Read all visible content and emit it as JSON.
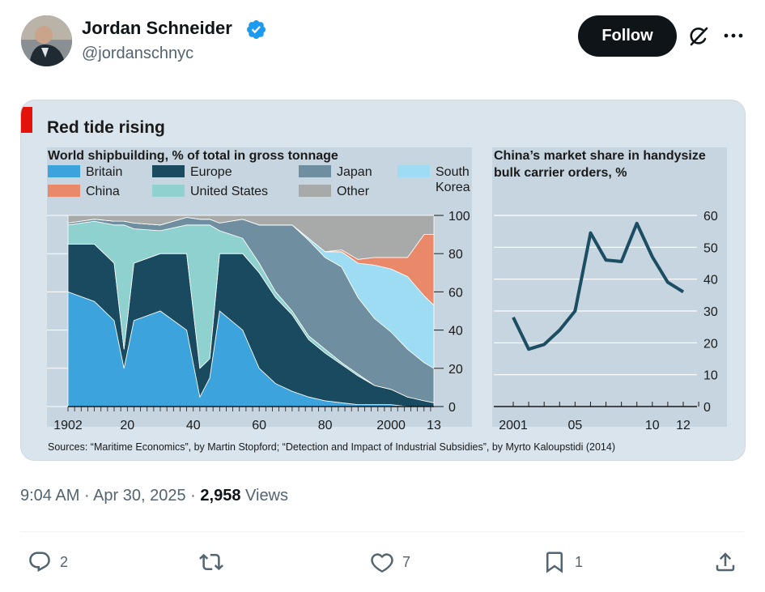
{
  "author": {
    "name": "Jordan Schneider",
    "handle": "@jordanschnyc",
    "verified": true,
    "avatar_icon": "avatar"
  },
  "header": {
    "follow_label": "Follow",
    "grok_icon": "grok-icon",
    "more_icon": "more-icon"
  },
  "image": {
    "title": "Red tide rising",
    "left_chart": {
      "subtitle": "World shipbuilding, % of total in gross tonnage",
      "legend": [
        {
          "label": "Britain",
          "color": "#3ca3dc"
        },
        {
          "label": "China",
          "color": "#e9896a"
        },
        {
          "label": "Europe",
          "color": "#1a4a60"
        },
        {
          "label": "United States",
          "color": "#8fd1cf"
        },
        {
          "label": "Japan",
          "color": "#6f8fa0"
        },
        {
          "label": "Other",
          "color": "#a8a9a9"
        },
        {
          "label": "South Korea",
          "color": "#9edcf3"
        }
      ],
      "x_ticks": [
        "1902",
        "20",
        "40",
        "60",
        "80",
        "2000",
        "13"
      ],
      "y_ticks": [
        "0",
        "20",
        "40",
        "60",
        "80",
        "100"
      ]
    },
    "right_chart": {
      "subtitle_line1": "China’s market share in handysize",
      "subtitle_line2": "bulk carrier orders, %",
      "x_ticks": [
        "2001",
        "05",
        "10",
        "12"
      ],
      "y_ticks": [
        "0",
        "10",
        "20",
        "30",
        "40",
        "50",
        "60"
      ]
    },
    "source": "Sources: “Maritime Economics”, by Martin Stopford; “Detection and Impact of Industrial Subsidies”, by Myrto Kaloupstidi (2014)"
  },
  "chart_data": [
    {
      "type": "area",
      "title": "World shipbuilding, % of total in gross tonnage",
      "x": [
        1902,
        1910,
        1916,
        1919,
        1922,
        1930,
        1938,
        1942,
        1945,
        1948,
        1955,
        1960,
        1965,
        1970,
        1975,
        1980,
        1985,
        1990,
        1995,
        2000,
        2005,
        2010,
        2013
      ],
      "series": [
        {
          "name": "Britain",
          "values": [
            60,
            55,
            45,
            20,
            45,
            50,
            40,
            5,
            15,
            50,
            40,
            20,
            12,
            8,
            5,
            3,
            2,
            1,
            1,
            1,
            0,
            0,
            0
          ]
        },
        {
          "name": "Europe",
          "values": [
            25,
            30,
            30,
            10,
            30,
            30,
            40,
            15,
            10,
            30,
            40,
            50,
            45,
            40,
            30,
            25,
            20,
            15,
            10,
            8,
            5,
            3,
            2
          ]
        },
        {
          "name": "United States",
          "values": [
            10,
            12,
            20,
            65,
            18,
            12,
            15,
            75,
            70,
            12,
            8,
            5,
            3,
            2,
            2,
            2,
            1,
            1,
            0,
            0,
            0,
            0,
            0
          ]
        },
        {
          "name": "Japan",
          "values": [
            1,
            1,
            2,
            2,
            3,
            3,
            4,
            3,
            3,
            4,
            10,
            20,
            35,
            45,
            50,
            48,
            50,
            40,
            35,
            30,
            25,
            20,
            18
          ]
        },
        {
          "name": "South Korea",
          "values": [
            0,
            0,
            0,
            0,
            0,
            0,
            0,
            0,
            0,
            0,
            0,
            0,
            0,
            0,
            1,
            3,
            8,
            18,
            28,
            33,
            38,
            35,
            33
          ]
        },
        {
          "name": "China",
          "values": [
            0,
            0,
            0,
            0,
            0,
            0,
            0,
            0,
            0,
            0,
            0,
            0,
            0,
            0,
            0,
            0,
            1,
            2,
            4,
            6,
            10,
            32,
            37
          ]
        },
        {
          "name": "Other",
          "values": [
            4,
            2,
            3,
            3,
            4,
            5,
            1,
            2,
            2,
            4,
            2,
            5,
            5,
            5,
            12,
            19,
            18,
            23,
            22,
            22,
            22,
            10,
            10
          ]
        }
      ],
      "ylim": [
        0,
        100
      ]
    },
    {
      "type": "line",
      "title": "China’s market share in handysize bulk carrier orders, %",
      "x": [
        2001,
        2002,
        2003,
        2004,
        2005,
        2006,
        2007,
        2008,
        2009,
        2010,
        2011,
        2012
      ],
      "values": [
        28,
        18,
        19.5,
        24,
        30,
        54.5,
        46,
        45.5,
        57.5,
        47,
        39,
        36
      ],
      "ylim": [
        0,
        60
      ]
    }
  ],
  "meta": {
    "time": "9:04 AM",
    "date": "Apr 30, 2025",
    "views_count": "2,958",
    "views_label": "Views"
  },
  "actions": {
    "replies": "2",
    "reposts": "",
    "likes": "7",
    "bookmarks": "1"
  }
}
